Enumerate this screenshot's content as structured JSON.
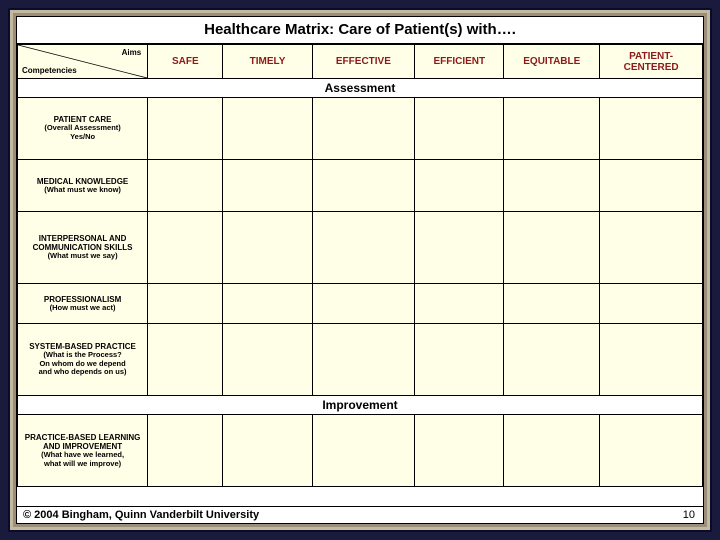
{
  "title": "Healthcare Matrix:  Care of Patient(s) with….",
  "corner": {
    "aims": "Aims",
    "competencies": "Competencies"
  },
  "columns": [
    "SAFE",
    "TIMELY",
    "EFFECTIVE",
    "EFFICIENT",
    "EQUITABLE",
    "PATIENT-CENTERED"
  ],
  "sections": {
    "assessment": "Assessment",
    "improvement": "Improvement"
  },
  "rows_assessment": [
    {
      "main": "PATIENT CARE",
      "sub": "(Overall Assessment)\nYes/No",
      "h": "r-tall"
    },
    {
      "main": "MEDICAL KNOWLEDGE",
      "sub": "(What must we know)",
      "h": "r-med"
    },
    {
      "main": "INTERPERSONAL AND COMMUNICATION SKILLS",
      "sub": "(What must we say)",
      "h": "r-xl"
    },
    {
      "main": "PROFESSIONALISM",
      "sub": "(How must we act)",
      "h": "r-short"
    },
    {
      "main": "SYSTEM-BASED PRACTICE",
      "sub": "(What is the Process?\nOn whom do we depend\nand who depends on us)",
      "h": "r-xl"
    }
  ],
  "rows_improvement": [
    {
      "main": "PRACTICE-BASED LEARNING AND IMPROVEMENT",
      "sub": "(What have we learned,\nwhat will we improve)",
      "h": "r-xl"
    }
  ],
  "footer": {
    "copyright": "© 2004  Bingham, Quinn Vanderbilt University",
    "page": "10"
  },
  "colors": {
    "slide_outer": "#1a1a3d",
    "slide_frame": "#9a8f7a",
    "cell_bg": "#ffffe8",
    "header_text": "#8b1a1a",
    "border": "#000000"
  },
  "col_widths_pct": [
    19,
    11,
    13,
    15,
    13,
    14,
    15
  ]
}
